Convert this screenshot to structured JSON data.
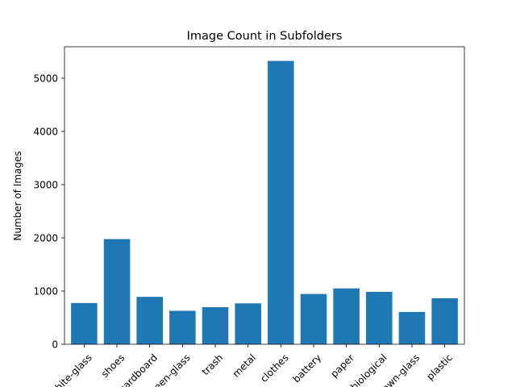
{
  "chart_data": {
    "type": "bar",
    "title": "Image Count in Subfolders",
    "xlabel": "",
    "ylabel": "Number of Images",
    "categories": [
      "white-glass",
      "shoes",
      "cardboard",
      "green-glass",
      "trash",
      "metal",
      "clothes",
      "battery",
      "paper",
      "biological",
      "brown-glass",
      "plastic"
    ],
    "values": [
      775,
      1977,
      891,
      629,
      697,
      769,
      5325,
      945,
      1050,
      985,
      607,
      865
    ],
    "yticks": [
      0,
      1000,
      2000,
      3000,
      4000,
      5000
    ],
    "ylim": [
      0,
      5591
    ],
    "grid": false,
    "legend": "none",
    "colors": {
      "bar": "#1f77b4",
      "axis": "#000000",
      "background": "#ffffff"
    }
  }
}
